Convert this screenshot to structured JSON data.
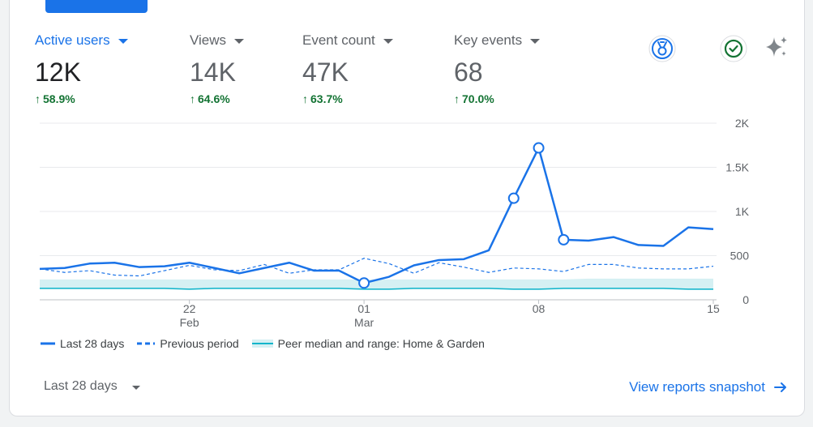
{
  "metrics": [
    {
      "label": "Active users",
      "value": "12K",
      "delta": "58.9%"
    },
    {
      "label": "Views",
      "value": "14K",
      "delta": "64.6%"
    },
    {
      "label": "Event count",
      "value": "47K",
      "delta": "63.7%"
    },
    {
      "label": "Key events",
      "value": "68",
      "delta": "70.0%"
    }
  ],
  "icons": {
    "insights": "medal-icon",
    "verified": "check-circle-icon",
    "ai": "sparkle-icon"
  },
  "colors": {
    "accent": "#1a73e8",
    "positive": "#137333",
    "peer_band": "#d5f0f3",
    "peer_line": "#12b5cb"
  },
  "chart_data": {
    "type": "line",
    "x_tick_labels": [
      {
        "day": "22",
        "month": "Feb"
      },
      {
        "day": "01",
        "month": "Mar"
      },
      {
        "day": "08",
        "month": ""
      },
      {
        "day": "15",
        "month": ""
      }
    ],
    "y_tick_labels": [
      "2K",
      "1.5K",
      "1K",
      "500",
      "0"
    ],
    "ylim": [
      0,
      2000
    ],
    "grid": true,
    "legend_position": "bottom-left",
    "series": [
      {
        "name": "Last 28 days",
        "style": "solid",
        "values": [
          350,
          360,
          410,
          420,
          370,
          380,
          420,
          360,
          300,
          360,
          420,
          330,
          330,
          190,
          260,
          390,
          450,
          460,
          560,
          1150,
          1720,
          680,
          670,
          710,
          620,
          610,
          820,
          800
        ]
      },
      {
        "name": "Previous period",
        "style": "dashed",
        "values": [
          350,
          310,
          330,
          280,
          270,
          330,
          390,
          340,
          330,
          400,
          300,
          340,
          340,
          470,
          410,
          300,
          420,
          370,
          310,
          360,
          350,
          320,
          400,
          400,
          360,
          350,
          350,
          380
        ]
      },
      {
        "name": "Peer median and range: Home & Garden",
        "style": "band",
        "median": [
          130,
          130,
          130,
          130,
          130,
          130,
          120,
          130,
          130,
          130,
          130,
          130,
          130,
          120,
          120,
          130,
          130,
          130,
          130,
          120,
          120,
          130,
          130,
          130,
          130,
          130,
          120,
          120
        ],
        "upper": [
          230,
          230,
          230,
          230,
          230,
          230,
          230,
          230,
          230,
          230,
          230,
          230,
          230,
          230,
          230,
          230,
          230,
          230,
          230,
          230,
          230,
          230,
          240,
          240,
          240,
          240,
          240,
          240
        ],
        "lower": [
          120,
          120,
          120,
          120,
          120,
          120,
          110,
          120,
          120,
          120,
          120,
          120,
          120,
          110,
          110,
          120,
          120,
          120,
          120,
          110,
          110,
          120,
          120,
          120,
          120,
          120,
          110,
          110
        ]
      }
    ],
    "highlighted_points": [
      13,
      19,
      20,
      21
    ]
  },
  "footer": {
    "date_range": "Last 28 days",
    "link_label": "View reports snapshot"
  }
}
